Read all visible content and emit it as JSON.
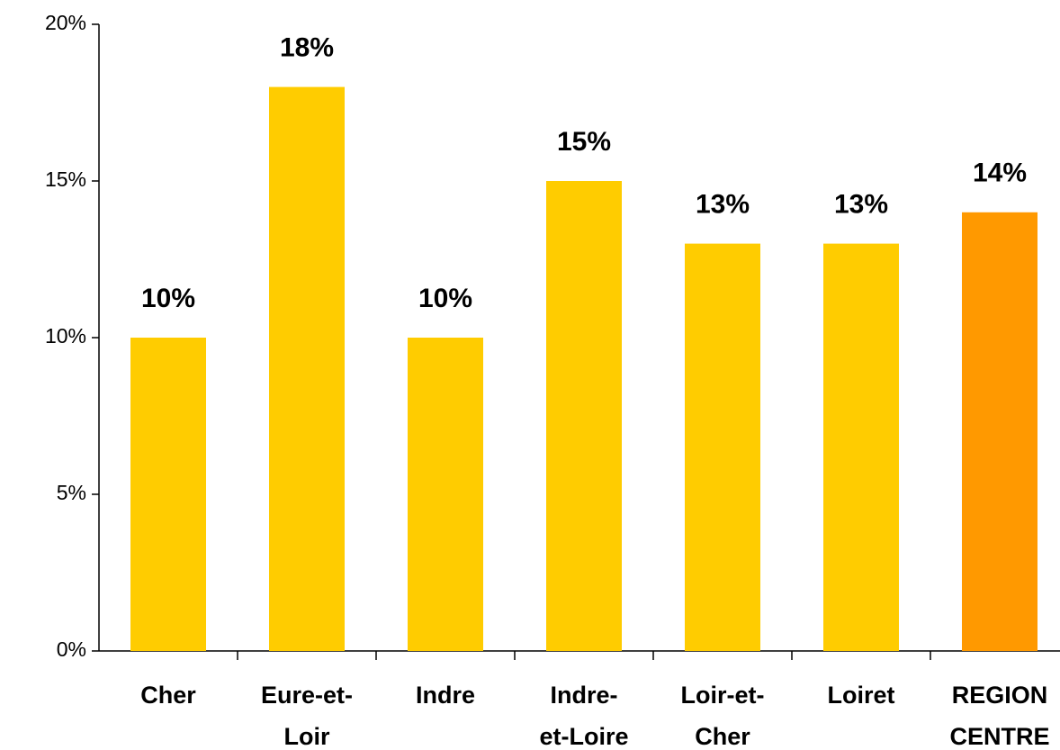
{
  "chart_data": {
    "type": "bar",
    "categories": [
      "Cher",
      "Eure-et-\nLoir",
      "Indre",
      "Indre-\net-Loire",
      "Loir-et-\nCher",
      "Loiret",
      "REGION\nCENTRE"
    ],
    "values": [
      10,
      18,
      10,
      15,
      13,
      13,
      14
    ],
    "value_labels": [
      "10%",
      "18%",
      "10%",
      "15%",
      "13%",
      "13%",
      "14%"
    ],
    "colors": [
      "#ffcc00",
      "#ffcc00",
      "#ffcc00",
      "#ffcc00",
      "#ffcc00",
      "#ffcc00",
      "#ff9900"
    ],
    "ylim": [
      0,
      20
    ],
    "yticks": [
      {
        "value": 0,
        "label": "0%"
      },
      {
        "value": 5,
        "label": "5%"
      },
      {
        "value": 10,
        "label": "10%"
      },
      {
        "value": 15,
        "label": "15%"
      },
      {
        "value": 20,
        "label": "20%"
      }
    ],
    "grid": false
  }
}
